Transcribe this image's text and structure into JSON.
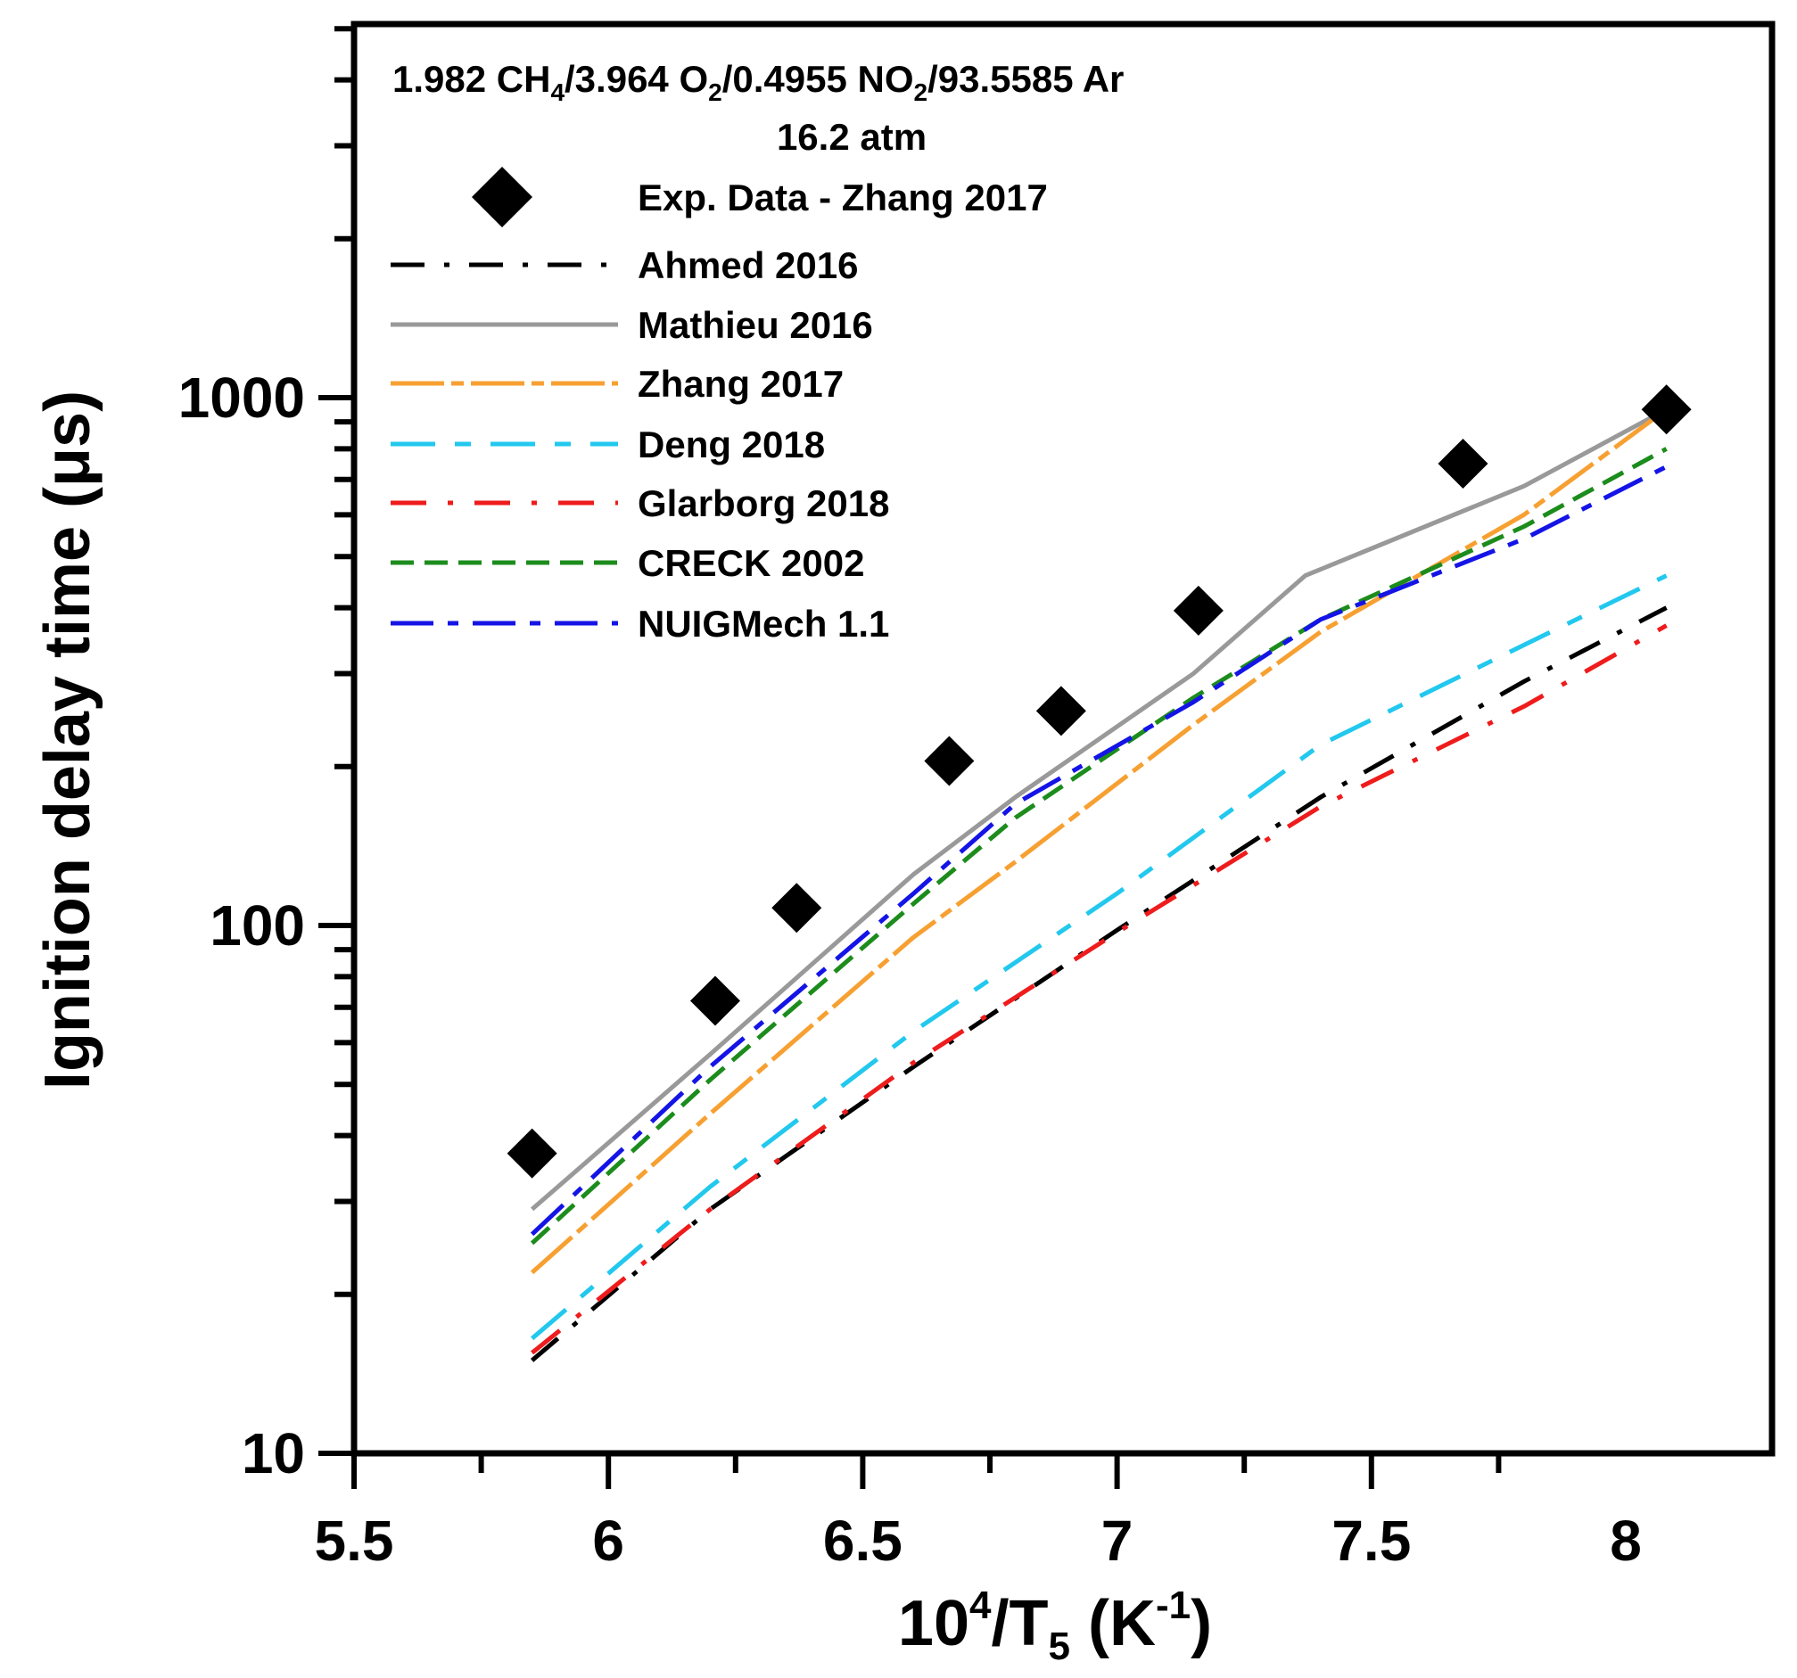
{
  "chart_data": {
    "type": "line",
    "title": "1.982 CH4/3.964 O2/0.4955 NO2/93.5585 Ar",
    "title_parts": {
      "p1": "1.982 CH",
      "s1": "4",
      "p2": "/3.964 O",
      "s2": "2",
      "p3": "/0.4955 NO",
      "s3": "2",
      "p4": "/93.5585 Ar"
    },
    "subtitle": "16.2 atm",
    "xlabel": "10^4/T5 (K^-1)",
    "xlabel_parts": {
      "a": "10",
      "sup": "4",
      "b": "/T",
      "sub": "5",
      "c": " (K",
      "sup2": "-1",
      "d": ")"
    },
    "ylabel": "Ignition delay time (μs)",
    "xlim": [
      5.45,
      8.3
    ],
    "ylim": [
      10,
      5000
    ],
    "yscale": "log",
    "x_ticks": [
      5.5,
      6,
      6.5,
      7,
      7.5,
      8
    ],
    "x_tick_labels": [
      "5.5",
      "6",
      "6.5",
      "7",
      "7.5",
      "8"
    ],
    "y_ticks": [
      10,
      100,
      1000
    ],
    "y_tick_labels": [
      "10",
      "100",
      "1000"
    ],
    "grid": false,
    "legend_position": "top-left",
    "scatter": {
      "name": "Exp. Data - Zhang 2017",
      "color": "#000000",
      "marker": "diamond",
      "x": [
        5.85,
        6.21,
        6.37,
        6.67,
        6.89,
        7.16,
        7.68,
        8.08
      ],
      "y": [
        37,
        72,
        108,
        205,
        255,
        395,
        750,
        950
      ]
    },
    "series": [
      {
        "name": "Ahmed 2016",
        "color": "#000000",
        "dash": "38,22,6,22",
        "x": [
          5.85,
          6.2,
          6.6,
          7.0,
          7.4,
          7.8,
          8.08
        ],
        "y": [
          15,
          29,
          54,
          98,
          175,
          290,
          400
        ]
      },
      {
        "name": "Mathieu 2016",
        "color": "#999999",
        "dash": "",
        "x": [
          5.85,
          6.2,
          6.6,
          6.8,
          7.15,
          7.37,
          7.8,
          8.08
        ],
        "y": [
          29,
          57,
          125,
          175,
          300,
          460,
          680,
          950
        ]
      },
      {
        "name": "Zhang 2017",
        "color": "#f7a032",
        "dash": "60,8,14,8",
        "x": [
          5.85,
          6.2,
          6.6,
          6.8,
          7.15,
          7.4,
          7.8,
          8.08
        ],
        "y": [
          22,
          44,
          95,
          132,
          240,
          360,
          600,
          950
        ]
      },
      {
        "name": "Deng 2018",
        "color": "#22c8ee",
        "dash": "50,22,18,22",
        "x": [
          5.85,
          6.2,
          6.6,
          7.0,
          7.4,
          7.8,
          8.08
        ],
        "y": [
          16.5,
          32,
          63,
          115,
          220,
          340,
          460
        ]
      },
      {
        "name": "Glarborg 2018",
        "color": "#ee1c1c",
        "dash": "40,24,6,24",
        "x": [
          5.85,
          6.2,
          6.6,
          7.0,
          7.4,
          7.8,
          8.08
        ],
        "y": [
          15.5,
          29,
          55,
          97,
          168,
          260,
          370
        ]
      },
      {
        "name": "CRECK 2002",
        "color": "#1c8c1c",
        "dash": "26,12",
        "x": [
          5.85,
          6.2,
          6.6,
          6.8,
          7.15,
          7.4,
          7.8,
          8.08
        ],
        "y": [
          25,
          51,
          110,
          160,
          270,
          380,
          570,
          800
        ]
      },
      {
        "name": "NUIGMech 1.1",
        "color": "#1414e6",
        "dash": "48,16,12,16",
        "x": [
          5.85,
          6.2,
          6.6,
          6.8,
          7.15,
          7.4,
          7.8,
          8.08
        ],
        "y": [
          26,
          54,
          115,
          170,
          265,
          380,
          540,
          740
        ]
      }
    ]
  }
}
